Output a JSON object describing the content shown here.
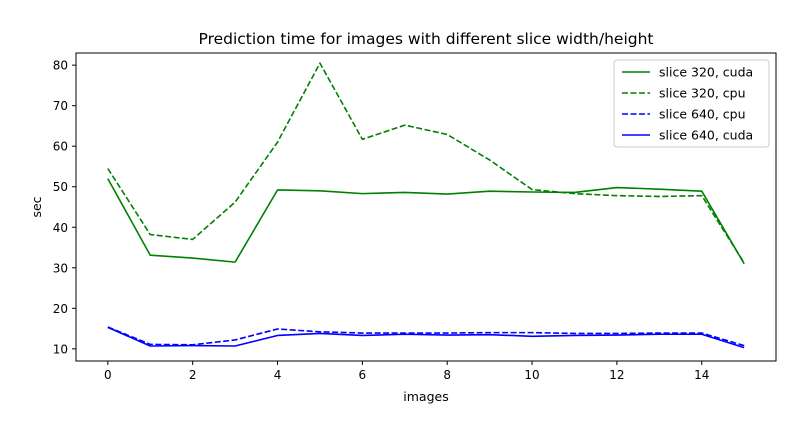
{
  "chart_data": {
    "type": "line",
    "title": "Prediction time for images with different slice width/height",
    "xlabel": "images",
    "ylabel": "sec",
    "xlim": [
      -0.75,
      15.75
    ],
    "ylim": [
      7,
      83
    ],
    "xticks": [
      0,
      2,
      4,
      6,
      8,
      10,
      12,
      14
    ],
    "yticks": [
      10,
      20,
      30,
      40,
      50,
      60,
      70,
      80
    ],
    "grid": false,
    "legend_position": "top-right",
    "x": [
      0,
      1,
      2,
      3,
      4,
      5,
      6,
      7,
      8,
      9,
      10,
      11,
      12,
      13,
      14,
      15
    ],
    "series": [
      {
        "name": "slice 320, cuda",
        "color": "#008000",
        "style": "solid",
        "values": [
          52.0,
          33.1,
          32.4,
          31.4,
          49.2,
          49.0,
          48.3,
          48.6,
          48.2,
          48.9,
          48.7,
          48.6,
          49.8,
          49.4,
          48.9,
          31.0
        ]
      },
      {
        "name": "slice 320, cpu",
        "color": "#008000",
        "style": "dashed",
        "values": [
          54.5,
          38.2,
          37.0,
          46.2,
          61.0,
          80.5,
          61.7,
          65.2,
          62.9,
          56.6,
          49.3,
          48.3,
          47.8,
          47.6,
          47.8,
          31.2
        ]
      },
      {
        "name": "slice 640, cpu",
        "color": "#0000ff",
        "style": "dashed",
        "values": [
          15.4,
          11.1,
          11.0,
          12.2,
          14.9,
          14.2,
          13.9,
          13.9,
          13.9,
          14.0,
          14.0,
          13.8,
          13.8,
          13.9,
          13.9,
          10.8
        ]
      },
      {
        "name": "slice 640, cuda",
        "color": "#0000ff",
        "style": "solid",
        "values": [
          15.3,
          10.7,
          10.8,
          10.7,
          13.3,
          13.8,
          13.3,
          13.6,
          13.4,
          13.5,
          13.1,
          13.3,
          13.4,
          13.6,
          13.6,
          10.3
        ]
      }
    ]
  }
}
